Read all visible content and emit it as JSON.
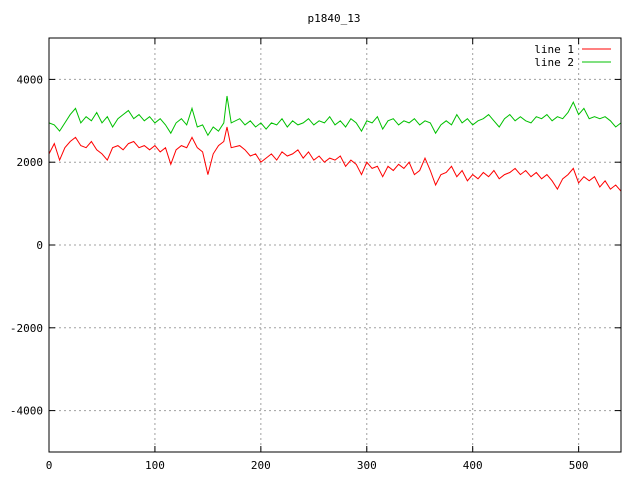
{
  "chart_data": {
    "type": "line",
    "title": "p1840_13",
    "xlabel": "",
    "ylabel": "",
    "xlim": [
      0,
      540
    ],
    "ylim": [
      -5000,
      5000
    ],
    "xticks": [
      0,
      100,
      200,
      300,
      400,
      500
    ],
    "yticks": [
      -4000,
      -2000,
      0,
      2000,
      4000
    ],
    "grid": true,
    "legend_position": "top-right",
    "series": [
      {
        "name": "line 1",
        "color": "#ff0000",
        "points": [
          [
            0,
            2200
          ],
          [
            5,
            2450
          ],
          [
            10,
            2050
          ],
          [
            15,
            2350
          ],
          [
            20,
            2500
          ],
          [
            25,
            2600
          ],
          [
            30,
            2400
          ],
          [
            35,
            2350
          ],
          [
            40,
            2500
          ],
          [
            45,
            2300
          ],
          [
            50,
            2200
          ],
          [
            55,
            2050
          ],
          [
            60,
            2350
          ],
          [
            65,
            2400
          ],
          [
            70,
            2300
          ],
          [
            75,
            2450
          ],
          [
            80,
            2500
          ],
          [
            85,
            2350
          ],
          [
            90,
            2400
          ],
          [
            95,
            2300
          ],
          [
            100,
            2400
          ],
          [
            105,
            2250
          ],
          [
            110,
            2350
          ],
          [
            115,
            1950
          ],
          [
            120,
            2300
          ],
          [
            125,
            2400
          ],
          [
            130,
            2350
          ],
          [
            135,
            2600
          ],
          [
            140,
            2350
          ],
          [
            145,
            2250
          ],
          [
            150,
            1700
          ],
          [
            155,
            2200
          ],
          [
            160,
            2400
          ],
          [
            165,
            2500
          ],
          [
            168,
            2850
          ],
          [
            172,
            2350
          ],
          [
            180,
            2400
          ],
          [
            185,
            2300
          ],
          [
            190,
            2150
          ],
          [
            195,
            2200
          ],
          [
            200,
            2000
          ],
          [
            205,
            2100
          ],
          [
            210,
            2200
          ],
          [
            215,
            2050
          ],
          [
            220,
            2250
          ],
          [
            225,
            2150
          ],
          [
            230,
            2200
          ],
          [
            235,
            2300
          ],
          [
            240,
            2100
          ],
          [
            245,
            2250
          ],
          [
            250,
            2050
          ],
          [
            255,
            2150
          ],
          [
            260,
            2000
          ],
          [
            265,
            2100
          ],
          [
            270,
            2050
          ],
          [
            275,
            2150
          ],
          [
            280,
            1900
          ],
          [
            285,
            2050
          ],
          [
            290,
            1950
          ],
          [
            295,
            1700
          ],
          [
            300,
            2000
          ],
          [
            305,
            1850
          ],
          [
            310,
            1900
          ],
          [
            315,
            1650
          ],
          [
            320,
            1900
          ],
          [
            325,
            1800
          ],
          [
            330,
            1950
          ],
          [
            335,
            1850
          ],
          [
            340,
            2000
          ],
          [
            345,
            1700
          ],
          [
            350,
            1800
          ],
          [
            355,
            2100
          ],
          [
            360,
            1800
          ],
          [
            365,
            1450
          ],
          [
            370,
            1700
          ],
          [
            375,
            1750
          ],
          [
            380,
            1900
          ],
          [
            385,
            1650
          ],
          [
            390,
            1800
          ],
          [
            395,
            1550
          ],
          [
            400,
            1700
          ],
          [
            405,
            1600
          ],
          [
            410,
            1750
          ],
          [
            415,
            1650
          ],
          [
            420,
            1800
          ],
          [
            425,
            1600
          ],
          [
            430,
            1700
          ],
          [
            435,
            1750
          ],
          [
            440,
            1850
          ],
          [
            445,
            1700
          ],
          [
            450,
            1800
          ],
          [
            455,
            1650
          ],
          [
            460,
            1750
          ],
          [
            465,
            1600
          ],
          [
            470,
            1700
          ],
          [
            475,
            1550
          ],
          [
            480,
            1350
          ],
          [
            485,
            1600
          ],
          [
            490,
            1700
          ],
          [
            495,
            1850
          ],
          [
            500,
            1500
          ],
          [
            505,
            1650
          ],
          [
            510,
            1550
          ],
          [
            515,
            1650
          ],
          [
            520,
            1400
          ],
          [
            525,
            1550
          ],
          [
            530,
            1350
          ],
          [
            535,
            1450
          ],
          [
            540,
            1300
          ]
        ]
      },
      {
        "name": "line 2",
        "color": "#00c000",
        "points": [
          [
            0,
            2950
          ],
          [
            5,
            2900
          ],
          [
            10,
            2750
          ],
          [
            15,
            2950
          ],
          [
            20,
            3150
          ],
          [
            25,
            3300
          ],
          [
            30,
            2950
          ],
          [
            35,
            3100
          ],
          [
            40,
            3000
          ],
          [
            45,
            3200
          ],
          [
            50,
            2950
          ],
          [
            55,
            3100
          ],
          [
            60,
            2850
          ],
          [
            65,
            3050
          ],
          [
            70,
            3150
          ],
          [
            75,
            3250
          ],
          [
            80,
            3050
          ],
          [
            85,
            3150
          ],
          [
            90,
            3000
          ],
          [
            95,
            3100
          ],
          [
            100,
            2950
          ],
          [
            105,
            3050
          ],
          [
            110,
            2900
          ],
          [
            115,
            2700
          ],
          [
            120,
            2950
          ],
          [
            125,
            3050
          ],
          [
            130,
            2900
          ],
          [
            135,
            3300
          ],
          [
            140,
            2850
          ],
          [
            145,
            2900
          ],
          [
            150,
            2650
          ],
          [
            155,
            2850
          ],
          [
            160,
            2750
          ],
          [
            165,
            2950
          ],
          [
            168,
            3600
          ],
          [
            172,
            2950
          ],
          [
            180,
            3050
          ],
          [
            185,
            2900
          ],
          [
            190,
            3000
          ],
          [
            195,
            2850
          ],
          [
            200,
            2950
          ],
          [
            205,
            2800
          ],
          [
            210,
            2950
          ],
          [
            215,
            2900
          ],
          [
            220,
            3050
          ],
          [
            225,
            2850
          ],
          [
            230,
            3000
          ],
          [
            235,
            2900
          ],
          [
            240,
            2950
          ],
          [
            245,
            3050
          ],
          [
            250,
            2900
          ],
          [
            255,
            3000
          ],
          [
            260,
            2950
          ],
          [
            265,
            3100
          ],
          [
            270,
            2900
          ],
          [
            275,
            3000
          ],
          [
            280,
            2850
          ],
          [
            285,
            3050
          ],
          [
            290,
            2950
          ],
          [
            295,
            2750
          ],
          [
            300,
            3000
          ],
          [
            305,
            2950
          ],
          [
            310,
            3100
          ],
          [
            315,
            2800
          ],
          [
            320,
            3000
          ],
          [
            325,
            3050
          ],
          [
            330,
            2900
          ],
          [
            335,
            3000
          ],
          [
            340,
            2950
          ],
          [
            345,
            3050
          ],
          [
            350,
            2900
          ],
          [
            355,
            3000
          ],
          [
            360,
            2950
          ],
          [
            365,
            2700
          ],
          [
            370,
            2900
          ],
          [
            375,
            3000
          ],
          [
            380,
            2900
          ],
          [
            385,
            3150
          ],
          [
            390,
            2950
          ],
          [
            395,
            3050
          ],
          [
            400,
            2900
          ],
          [
            405,
            3000
          ],
          [
            410,
            3050
          ],
          [
            415,
            3150
          ],
          [
            420,
            3000
          ],
          [
            425,
            2850
          ],
          [
            430,
            3050
          ],
          [
            435,
            3150
          ],
          [
            440,
            3000
          ],
          [
            445,
            3100
          ],
          [
            450,
            3000
          ],
          [
            455,
            2950
          ],
          [
            460,
            3100
          ],
          [
            465,
            3050
          ],
          [
            470,
            3150
          ],
          [
            475,
            3000
          ],
          [
            480,
            3100
          ],
          [
            485,
            3050
          ],
          [
            490,
            3200
          ],
          [
            495,
            3450
          ],
          [
            500,
            3150
          ],
          [
            505,
            3300
          ],
          [
            510,
            3050
          ],
          [
            515,
            3100
          ],
          [
            520,
            3050
          ],
          [
            525,
            3100
          ],
          [
            530,
            3000
          ],
          [
            535,
            2850
          ],
          [
            540,
            2950
          ]
        ]
      }
    ]
  }
}
